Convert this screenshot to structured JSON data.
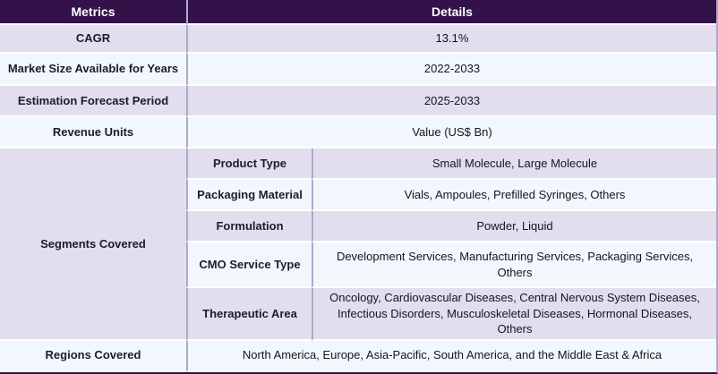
{
  "colors": {
    "header_bg": "#33124a",
    "header_text": "#ffffff",
    "row_lavender": "#e2deed",
    "row_light": "#f2f7fd",
    "divider": "#b0a7c9",
    "text_label": "#1d1d26",
    "text_value": "#15151e"
  },
  "table": {
    "header": {
      "metrics": "Metrics",
      "details": "Details"
    },
    "simple_rows": [
      {
        "label": "CAGR",
        "value": "13.1%"
      },
      {
        "label": "Market Size Available for Years",
        "value": "2022-2033"
      },
      {
        "label": "Estimation Forecast Period",
        "value": "2025-2033"
      },
      {
        "label": "Revenue Units",
        "value": "Value (US$ Bn)"
      }
    ],
    "segments": {
      "label": "Segments Covered",
      "rows": [
        {
          "label": "Product Type",
          "value": "Small Molecule, Large Molecule"
        },
        {
          "label": "Packaging Material",
          "value": "Vials, Ampoules, Prefilled Syringes, Others"
        },
        {
          "label": "Formulation",
          "value": "Powder, Liquid"
        },
        {
          "label": "CMO Service Type",
          "value": "Development Services, Manufacturing Services, Packaging Services, Others"
        },
        {
          "label": "Therapeutic Area",
          "value": "Oncology, Cardiovascular Diseases, Central Nervous System Diseases, Infectious Disorders, Musculoskeletal Diseases, Hormonal Diseases, Others"
        }
      ]
    },
    "regions": {
      "label": "Regions Covered",
      "value": "North America, Europe, Asia-Pacific, South America, and the Middle East & Africa"
    }
  }
}
